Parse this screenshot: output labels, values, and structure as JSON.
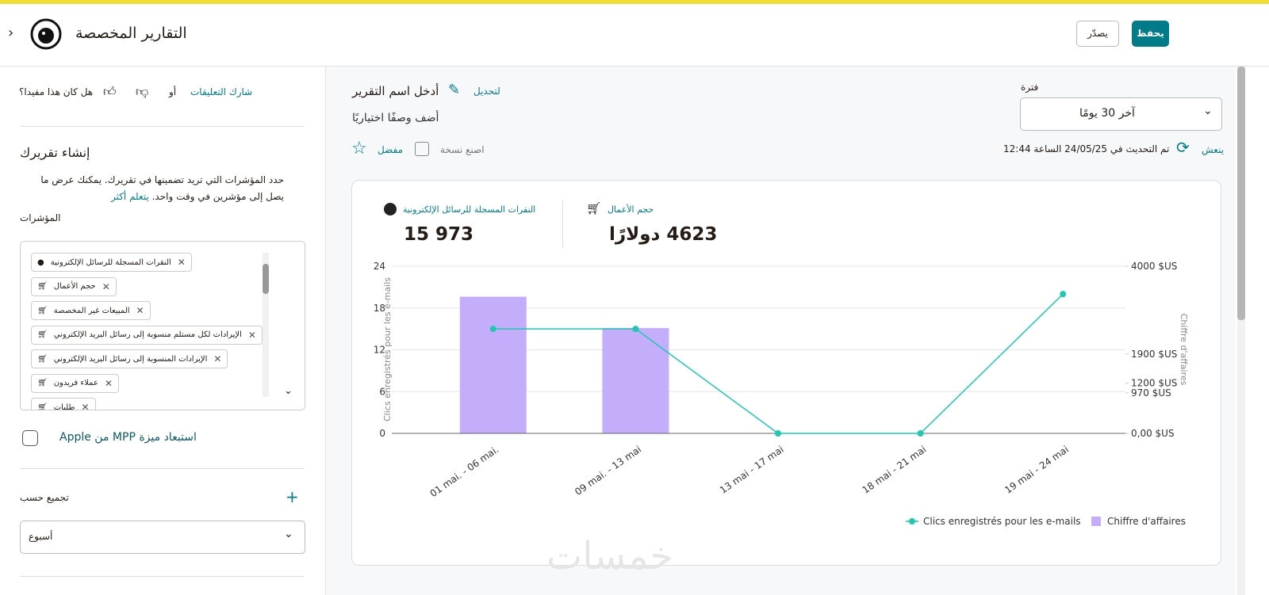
{
  "header": {
    "title": "التقارير المخصصة",
    "export": "يصدّر",
    "save": "يحفظ"
  },
  "sidebar": {
    "helpful": "هل كان هذا مفيدا؟",
    "or": "أو",
    "share_feedback": "شارك التعليقات",
    "build_title": "إنشاء تقريرك",
    "build_text": "حدد المؤشرات التي تريد تضمينها في تقريرك. يمكنك عرض ما يصل إلى مؤشرين في وقت واحد.",
    "learn_more": "يتعلم أكثر",
    "metrics_label": "المؤشرات",
    "metrics": [
      "النقرات المسجلة للرسائل الإلكترونية",
      "حجم الأعمال",
      "المبيعات غير المخصصة",
      "الإيرادات لكل مستلم منسوبة إلى رسائل البريد الإلكتروني",
      "الإيرادات المنسوبة إلى رسائل البريد الإلكتروني",
      "عملاء فريدون",
      "طلبات"
    ],
    "exclude_mpp": "استبعاد ميزة MPP من Apple",
    "group_by": "تجميع حسب",
    "group_value": "أسبوع"
  },
  "report": {
    "name_placeholder": "أدخل اسم التقرير",
    "edit": "لتحديل",
    "description": "أضف وصفًا اختياريًا",
    "favorite": "مفضل",
    "duplicate": "اصنع نسخة",
    "period_label": "فترة",
    "period_value": "آخر 30 يومًا",
    "refresh": "ينعش",
    "updated": "تم التحديث في 24/05/25 الساعة 12:44",
    "stats": [
      {
        "label": "النقرات المسجلة للرسائل الإلكترونية",
        "value": "15 973"
      },
      {
        "label": "حجم الأعمال",
        "value": "4623 دولارًا"
      }
    ],
    "watermark": "خمسات"
  },
  "chart_data": {
    "type": "bar-line",
    "categories": [
      "01 mai. - 06 mai.",
      "09 mai. - 13 mai",
      "13 mai - 17 mai",
      "18 mai - 21 mai",
      "19 mai - 24 mai"
    ],
    "y_label": "Clics enregistrés pour les e-mails",
    "y2_label": "Chiffre d'affaires",
    "ylim": [
      0,
      24
    ],
    "yticks": [
      0,
      6,
      12,
      18,
      24
    ],
    "y2lim": [
      0,
      4000
    ],
    "y2ticks": [
      {
        "value": 0,
        "label": "0,00 $US"
      },
      {
        "value": 970,
        "label": "970 $US"
      },
      {
        "value": 1200,
        "label": "1200 $US"
      },
      {
        "value": 1900,
        "label": "1900 $US"
      },
      {
        "value": 4000,
        "label": "4000 $US"
      }
    ],
    "grid": true,
    "series": [
      {
        "name": "Clics enregistrés pour les e-mails",
        "type": "line",
        "color": "#1ec8b1",
        "values": [
          15,
          15,
          0,
          0,
          20
        ]
      },
      {
        "name": "Chiffre d'affaires",
        "type": "bar",
        "axis": "y2",
        "color": "#c4aefc",
        "values": [
          3270,
          2520,
          0,
          0,
          0
        ]
      }
    ]
  }
}
